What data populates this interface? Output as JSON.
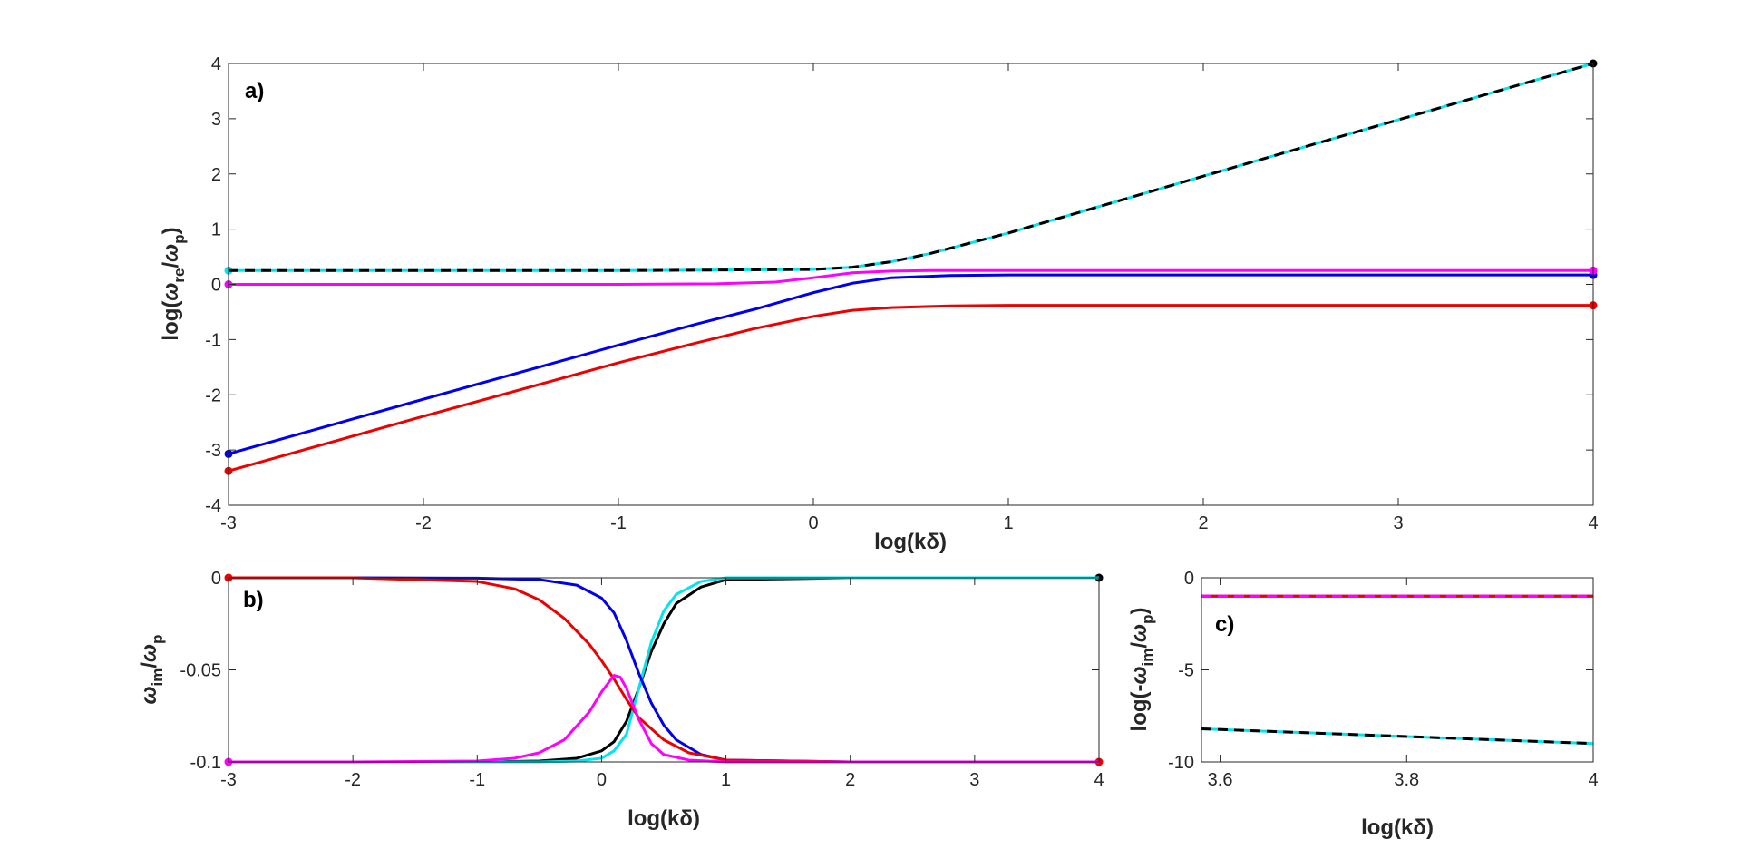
{
  "colors": {
    "black": "#000000",
    "cyan": "#00e5ee",
    "magenta": "#ff00ff",
    "blue": "#0000ee",
    "red": "#ee0000",
    "axis": "#262626"
  },
  "chart_data": [
    {
      "id": "a",
      "type": "line",
      "panel_label": "a)",
      "xlabel": "log(kδ)",
      "ylabel": "log(ωre/ωp)",
      "ylabel_parts": {
        "pre": "log(",
        "w1": "ω",
        "sub1": "re",
        "slash": "/",
        "w2": "ω",
        "sub2": "p",
        "post": ")"
      },
      "xlim": [
        -3,
        4
      ],
      "ylim": [
        -4,
        4
      ],
      "xticks": [
        "-3",
        "-2",
        "-1",
        "0",
        "1",
        "2",
        "3",
        "4"
      ],
      "yticks": [
        "-4",
        "-3",
        "-2",
        "-1",
        "0",
        "1",
        "2",
        "3",
        "4"
      ],
      "grid": false,
      "series": [
        {
          "color": "cyan",
          "dash": false,
          "endpoints": "start",
          "x": [
            -3,
            -2,
            -1,
            -0.5,
            0,
            0.2,
            0.4,
            0.6,
            1,
            2,
            3,
            4
          ],
          "y": [
            0.25,
            0.25,
            0.25,
            0.26,
            0.27,
            0.31,
            0.41,
            0.56,
            0.93,
            1.96,
            2.98,
            4.0
          ]
        },
        {
          "color": "black",
          "dash": true,
          "endpoints": "end",
          "x": [
            -3,
            -2,
            -1,
            -0.5,
            0,
            0.2,
            0.4,
            0.6,
            1,
            2,
            3,
            4
          ],
          "y": [
            0.25,
            0.25,
            0.25,
            0.26,
            0.27,
            0.31,
            0.41,
            0.56,
            0.93,
            1.96,
            2.98,
            4.0
          ]
        },
        {
          "color": "blue",
          "dash": false,
          "endpoints": "both",
          "x": [
            -3,
            -2,
            -1,
            -0.6,
            -0.3,
            0,
            0.2,
            0.4,
            0.7,
            1,
            2,
            3,
            4
          ],
          "y": [
            -3.07,
            -2.08,
            -1.1,
            -0.72,
            -0.45,
            -0.15,
            0.02,
            0.12,
            0.16,
            0.17,
            0.17,
            0.17,
            0.17
          ]
        },
        {
          "color": "red",
          "dash": false,
          "endpoints": "both",
          "x": [
            -3,
            -2,
            -1,
            -0.6,
            -0.3,
            0,
            0.2,
            0.4,
            0.7,
            1,
            2,
            3,
            4
          ],
          "y": [
            -3.38,
            -2.39,
            -1.42,
            -1.06,
            -0.8,
            -0.58,
            -0.47,
            -0.42,
            -0.39,
            -0.38,
            -0.38,
            -0.38,
            -0.38
          ]
        },
        {
          "color": "magenta",
          "dash": false,
          "endpoints": "both",
          "x": [
            -3,
            -2,
            -1,
            -0.5,
            -0.2,
            0,
            0.2,
            0.4,
            0.6,
            1,
            2,
            3,
            4
          ],
          "y": [
            0.0,
            0.0,
            0.0,
            0.01,
            0.04,
            0.12,
            0.21,
            0.24,
            0.25,
            0.25,
            0.25,
            0.25,
            0.25
          ]
        }
      ]
    },
    {
      "id": "b",
      "type": "line",
      "panel_label": "b)",
      "xlabel": "log(kδ)",
      "ylabel": "ωim/ωp",
      "ylabel_parts": {
        "w1": "ω",
        "sub1": "im",
        "slash": "/",
        "w2": "ω",
        "sub2": "p"
      },
      "xlim": [
        -3,
        4
      ],
      "ylim": [
        -0.1,
        0
      ],
      "xticks": [
        "-3",
        "-2",
        "-1",
        "0",
        "1",
        "2",
        "3",
        "4"
      ],
      "yticks": [
        "-0.1",
        "-0.05",
        "0"
      ],
      "grid": false,
      "series": [
        {
          "color": "black",
          "dash": false,
          "endpoints": "end",
          "x": [
            -3,
            -1,
            -0.5,
            -0.2,
            0,
            0.1,
            0.2,
            0.3,
            0.4,
            0.5,
            0.6,
            0.8,
            1,
            2,
            3,
            4
          ],
          "y": [
            -0.1,
            -0.1,
            -0.0995,
            -0.098,
            -0.094,
            -0.089,
            -0.078,
            -0.06,
            -0.04,
            -0.025,
            -0.014,
            -0.005,
            -0.001,
            0,
            0,
            0
          ]
        },
        {
          "color": "cyan",
          "dash": false,
          "endpoints": "none",
          "x": [
            -3,
            -1,
            -0.5,
            -0.2,
            0,
            0.1,
            0.2,
            0.3,
            0.4,
            0.5,
            0.6,
            0.8,
            1,
            2,
            3,
            4
          ],
          "y": [
            -0.1,
            -0.1,
            -0.1,
            -0.0995,
            -0.098,
            -0.094,
            -0.085,
            -0.06,
            -0.035,
            -0.018,
            -0.009,
            -0.002,
            0,
            0,
            0,
            0
          ]
        },
        {
          "color": "blue",
          "dash": false,
          "endpoints": "none",
          "x": [
            -3,
            -2,
            -1,
            -0.5,
            -0.2,
            0,
            0.1,
            0.2,
            0.3,
            0.4,
            0.5,
            0.6,
            0.8,
            1,
            2,
            3,
            4
          ],
          "y": [
            0,
            0,
            -0.0002,
            -0.001,
            -0.004,
            -0.011,
            -0.019,
            -0.034,
            -0.052,
            -0.068,
            -0.08,
            -0.088,
            -0.096,
            -0.099,
            -0.1,
            -0.1,
            -0.1
          ]
        },
        {
          "color": "red",
          "dash": false,
          "endpoints": "both",
          "x": [
            -3,
            -2,
            -1,
            -0.7,
            -0.5,
            -0.3,
            -0.1,
            0,
            0.1,
            0.2,
            0.3,
            0.5,
            0.7,
            1,
            2,
            3,
            4
          ],
          "y": [
            0,
            0,
            -0.002,
            -0.006,
            -0.012,
            -0.022,
            -0.036,
            -0.045,
            -0.055,
            -0.066,
            -0.076,
            -0.088,
            -0.095,
            -0.099,
            -0.1,
            -0.1,
            -0.1
          ]
        },
        {
          "color": "magenta",
          "dash": false,
          "endpoints": "start",
          "x": [
            -3,
            -2,
            -1,
            -0.7,
            -0.5,
            -0.3,
            -0.1,
            0,
            0.1,
            0.15,
            0.2,
            0.3,
            0.4,
            0.5,
            0.7,
            1,
            2,
            4
          ],
          "y": [
            -0.1,
            -0.1,
            -0.0995,
            -0.098,
            -0.095,
            -0.088,
            -0.073,
            -0.062,
            -0.053,
            -0.054,
            -0.06,
            -0.077,
            -0.09,
            -0.096,
            -0.099,
            -0.1,
            -0.1,
            -0.1
          ]
        }
      ]
    },
    {
      "id": "c",
      "type": "line",
      "panel_label": "c)",
      "xlabel": "log(kδ)",
      "ylabel": "log(-ωim/ωp)",
      "ylabel_parts": {
        "pre": "log(-",
        "w1": "ω",
        "sub1": "im",
        "slash": "/",
        "w2": "ω",
        "sub2": "p",
        "post": ")"
      },
      "xlim": [
        3.58,
        4
      ],
      "ylim": [
        -10,
        0
      ],
      "xticks": [
        "3.6",
        "3.8",
        "4"
      ],
      "xtick_values": [
        3.6,
        3.8,
        4
      ],
      "yticks": [
        "-10",
        "-5",
        "0"
      ],
      "ytick_values": [
        -10,
        -5,
        0
      ],
      "grid": false,
      "series": [
        {
          "color": "blue",
          "dash": false,
          "endpoints": "none",
          "x": [
            3.58,
            4
          ],
          "y": [
            -1.0,
            -1.0
          ]
        },
        {
          "color": "red",
          "dash": false,
          "endpoints": "none",
          "x": [
            3.58,
            4
          ],
          "y": [
            -1.0,
            -1.0
          ]
        },
        {
          "color": "magenta",
          "dash": true,
          "endpoints": "none",
          "x": [
            3.58,
            4
          ],
          "y": [
            -1.0,
            -1.0
          ]
        },
        {
          "color": "cyan",
          "dash": false,
          "endpoints": "none",
          "x": [
            3.58,
            4
          ],
          "y": [
            -8.2,
            -9.0
          ]
        },
        {
          "color": "black",
          "dash": true,
          "endpoints": "none",
          "x": [
            3.58,
            4
          ],
          "y": [
            -8.2,
            -9.0
          ]
        }
      ]
    }
  ]
}
